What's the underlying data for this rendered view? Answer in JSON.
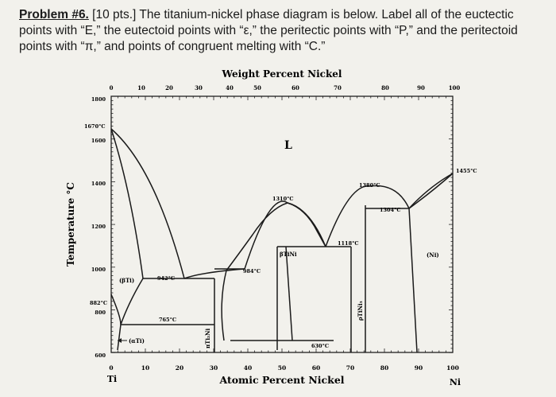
{
  "problem": {
    "lead": "Problem #6.",
    "text": " [10 pts.] The titanium-nickel phase diagram is below. Label all of the euctectic points with “E,” the eutectoid points with “ε,” the peritectic points with “P,” and the peritectoid points with “π,” and points of congruent melting with “C.”"
  },
  "diagram": {
    "top_axis_title": "Weight Percent Nickel",
    "top_ticks": [
      "0",
      "10",
      "20",
      "30",
      "40",
      "50",
      "60",
      "70",
      "80",
      "90",
      "100"
    ],
    "bottom_axis_title": "Atomic Percent Nickel",
    "bottom_ticks": [
      "0",
      "10",
      "20",
      "30",
      "40",
      "50",
      "60",
      "70",
      "80",
      "90",
      "100"
    ],
    "left_element": "Ti",
    "right_element": "Ni",
    "y_axis_title": "Temperature °C",
    "y_ticks": [
      "1800",
      "1600",
      "1400",
      "1200",
      "1000",
      "800",
      "600"
    ],
    "temperature_labels": {
      "ti_melting": "1670°C",
      "ti_transition": "882°C",
      "ni_melting": "1455°C"
    },
    "point_labels": {
      "t1310": "1310°C",
      "t1380": "1380°C",
      "t1304": "1304°C",
      "t1118": "1118°C",
      "t984": "984°C",
      "t942": "942°C",
      "t765": "765°C",
      "t630": "630°C"
    },
    "phase_labels": {
      "liquid": "L",
      "beta_ti": "(βTi)",
      "alpha_ti": "(αTi)",
      "beta_tini": "βTiNi",
      "ni": "(Ni)",
      "ti2ni": "πTi₂Ni",
      "tini3": "ρTiNi₃"
    }
  }
}
